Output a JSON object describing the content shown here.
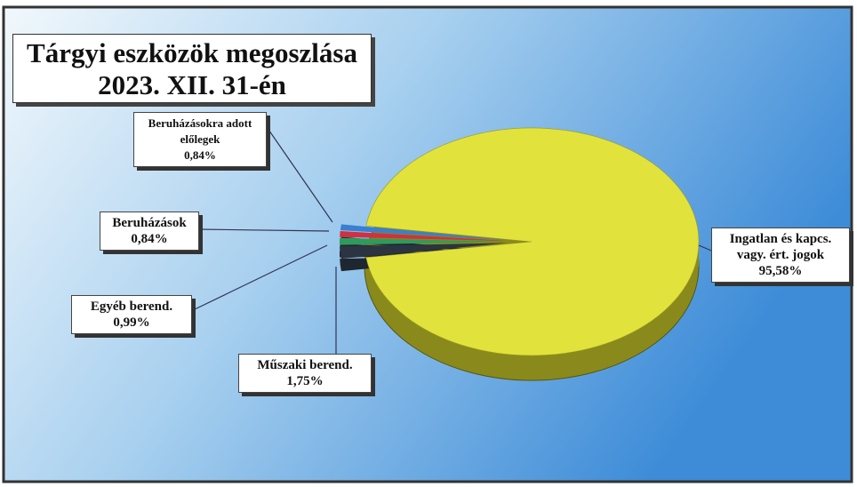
{
  "chart_data": {
    "type": "pie",
    "title": "Tárgyi eszközök megoszlása",
    "subtitle": "2023. XII. 31-én",
    "categories": [
      "Ingatlan és kapcs. vagy. ért. jogok",
      "Műszaki berend.",
      "Egyéb berend.",
      "Beruházások",
      "Beruházásokra adott előlegek"
    ],
    "values": [
      95.58,
      1.75,
      0.99,
      0.84,
      0.84
    ],
    "value_labels": [
      "95,58%",
      "1,75%",
      "0,99%",
      "0,84%",
      "0,84%"
    ],
    "colors": [
      "#e2e23c",
      "#2b3440",
      "#2f9a5c",
      "#d03040",
      "#3a7fd0"
    ]
  }
}
